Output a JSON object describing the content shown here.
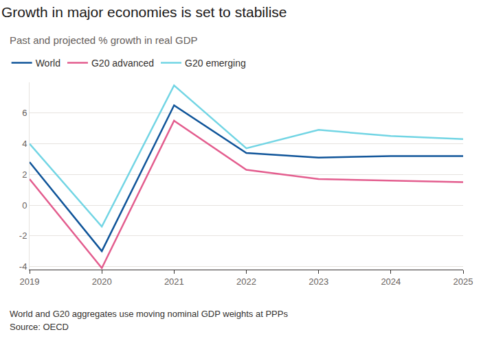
{
  "chart_data": {
    "type": "line",
    "title": "Growth in major economies is set to stabilise",
    "subtitle": "Past and projected % growth in real GDP",
    "annotations": [
      "World and G20 aggregates use moving nominal GDP weights at PPPs",
      "Source: OECD"
    ],
    "x": [
      2019,
      2020,
      2021,
      2022,
      2023,
      2024,
      2025
    ],
    "series": [
      {
        "name": "World",
        "color": "#0f5499",
        "values": [
          2.8,
          -3.0,
          6.5,
          3.4,
          3.1,
          3.2,
          3.2
        ]
      },
      {
        "name": "G20 advanced",
        "color": "#e35d8e",
        "values": [
          1.7,
          -4.1,
          5.5,
          2.3,
          1.7,
          1.6,
          1.5
        ]
      },
      {
        "name": "G20 emerging",
        "color": "#72d5e4",
        "values": [
          4.0,
          -1.4,
          7.8,
          3.7,
          4.9,
          4.5,
          4.3
        ]
      }
    ],
    "xlim": [
      2019,
      2025
    ],
    "xticks": [
      2019,
      2020,
      2021,
      2022,
      2023,
      2024,
      2025
    ],
    "ylim": [
      -4.2,
      8
    ],
    "yticks": [
      -4,
      -2,
      0,
      2,
      4,
      6
    ],
    "grid": true,
    "legend": "top left"
  }
}
